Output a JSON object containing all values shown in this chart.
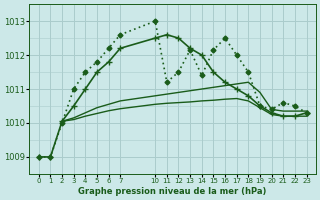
{
  "title": "Graphe pression niveau de la mer (hPa)",
  "bg_color": "#cce8e8",
  "grid_color": "#aacccc",
  "line_color": "#1a5c1a",
  "ylim": [
    1008.5,
    1013.5
  ],
  "yticks": [
    1009,
    1010,
    1011,
    1012,
    1013
  ],
  "x_positions": [
    0,
    1,
    2,
    3,
    4,
    5,
    6,
    7,
    10,
    11,
    12,
    13,
    14,
    15,
    16,
    17,
    18,
    19,
    20,
    21,
    22,
    23
  ],
  "xtick_labels": [
    "0",
    "1",
    "2",
    "3",
    "4",
    "5",
    "6",
    "7",
    "10",
    "11",
    "12",
    "13",
    "14",
    "15",
    "16",
    "17",
    "18",
    "19",
    "20",
    "21",
    "22",
    "23"
  ],
  "series": [
    {
      "x": [
        0,
        1,
        2,
        3,
        4,
        5,
        6,
        7,
        10,
        11,
        12,
        13,
        14,
        15,
        16,
        17,
        18,
        19,
        20,
        21,
        22,
        23
      ],
      "y": [
        1009.0,
        1009.0,
        1010.0,
        1011.0,
        1011.5,
        1011.8,
        1012.2,
        1012.6,
        1013.0,
        1011.2,
        1011.5,
        1012.15,
        1011.4,
        1012.15,
        1012.5,
        1012.0,
        1011.5,
        1010.5,
        1010.4,
        1010.6,
        1010.5,
        1010.3
      ],
      "marker": "D",
      "markersize": 2.5,
      "linestyle": "dotted",
      "linewidth": 1.2
    },
    {
      "x": [
        0,
        1,
        2,
        3,
        4,
        5,
        6,
        7,
        10,
        11,
        12,
        13,
        14,
        15,
        16,
        17,
        18,
        19,
        20,
        21,
        22,
        23
      ],
      "y": [
        1009.0,
        1009.0,
        1010.05,
        1010.5,
        1011.0,
        1011.5,
        1011.8,
        1012.2,
        1012.5,
        1012.6,
        1012.5,
        1012.2,
        1012.0,
        1011.5,
        1011.2,
        1011.0,
        1010.8,
        1010.5,
        1010.3,
        1010.2,
        1010.2,
        1010.3
      ],
      "marker": "+",
      "markersize": 5,
      "linestyle": "solid",
      "linewidth": 1.2
    },
    {
      "x": [
        2,
        3,
        4,
        5,
        6,
        7,
        10,
        11,
        12,
        13,
        14,
        15,
        16,
        17,
        18,
        19,
        20,
        21,
        22,
        23
      ],
      "y": [
        1010.05,
        1010.15,
        1010.3,
        1010.45,
        1010.55,
        1010.65,
        1010.8,
        1010.85,
        1010.9,
        1010.95,
        1011.0,
        1011.05,
        1011.1,
        1011.15,
        1011.2,
        1010.9,
        1010.4,
        1010.35,
        1010.35,
        1010.35
      ],
      "marker": null,
      "markersize": 0,
      "linestyle": "solid",
      "linewidth": 1.0
    },
    {
      "x": [
        2,
        3,
        4,
        5,
        6,
        7,
        10,
        11,
        12,
        13,
        14,
        15,
        16,
        17,
        18,
        19,
        20,
        21,
        22,
        23
      ],
      "y": [
        1010.05,
        1010.1,
        1010.2,
        1010.28,
        1010.36,
        1010.42,
        1010.55,
        1010.58,
        1010.6,
        1010.62,
        1010.65,
        1010.67,
        1010.7,
        1010.72,
        1010.65,
        1010.45,
        1010.25,
        1010.2,
        1010.2,
        1010.2
      ],
      "marker": null,
      "markersize": 0,
      "linestyle": "solid",
      "linewidth": 1.0
    }
  ]
}
